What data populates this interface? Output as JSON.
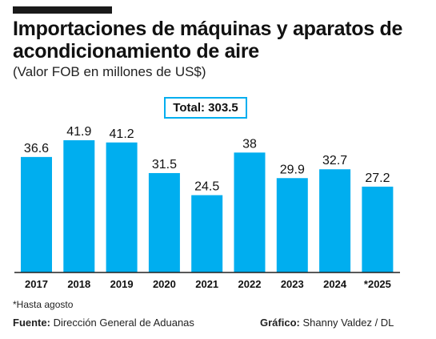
{
  "title": "Importaciones de máquinas y aparatos de acondicionamiento de aire",
  "subtitle": "(Valor FOB en millones de US$)",
  "total": "Total: 303.5",
  "footnote": "*Hasta agosto",
  "source_label": "Fuente:",
  "source_text": "Dirección General de Aduanas",
  "credit_label": "Gráfico:",
  "credit_text": "Shanny Valdez / DL",
  "colors": {
    "bar": "#00aeef",
    "axis": "#222222",
    "text": "#111111"
  },
  "chart_data": {
    "type": "bar",
    "categories": [
      "2017",
      "2018",
      "2019",
      "2020",
      "2021",
      "2022",
      "2023",
      "2024",
      "*2025"
    ],
    "values": [
      36.6,
      41.9,
      41.2,
      31.5,
      24.5,
      38,
      29.9,
      32.7,
      27.2
    ],
    "value_labels": [
      "36.6",
      "41.9",
      "41.2",
      "31.5",
      "24.5",
      "38",
      "29.9",
      "32.7",
      "27.2"
    ],
    "ylim": [
      0,
      41.9
    ],
    "grid": false,
    "legend": "none"
  }
}
